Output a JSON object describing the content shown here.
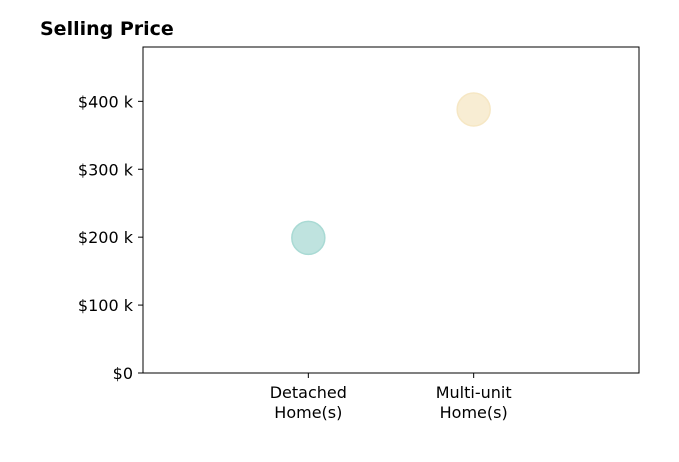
{
  "chart_data": {
    "type": "scatter",
    "title": "Selling Price",
    "xlabel": "",
    "ylabel": "",
    "categories": [
      [
        "Detached",
        "Home(s)"
      ],
      [
        "Multi-unit",
        "Home(s)"
      ]
    ],
    "series": [
      {
        "values": [
          199000,
          388000
        ],
        "colors": [
          "#a9dad4",
          "#f6e7c4"
        ]
      }
    ],
    "ylim": [
      0,
      480000
    ],
    "yticks": [
      0,
      100000,
      200000,
      300000,
      400000
    ],
    "ytick_labels": [
      "$0",
      "$100 k",
      "$200 k",
      "$300 k",
      "$400 k"
    ],
    "xlim": [
      -1,
      2
    ],
    "grid": false,
    "legend": "none"
  }
}
